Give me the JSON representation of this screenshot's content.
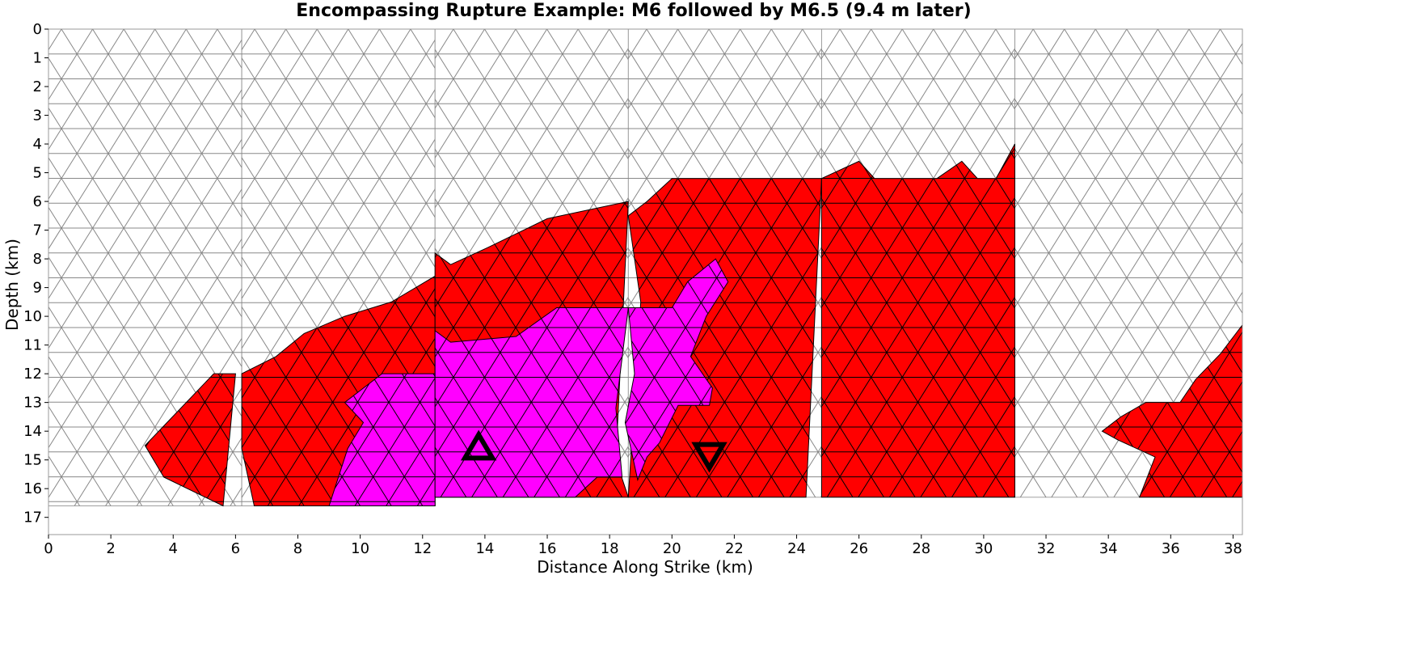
{
  "chart_data": {
    "type": "heatmap",
    "title": "Encompassing Rupture Example: M6 followed by M6.5 (9.4 m later)",
    "xlabel": "Distance Along Strike (km)",
    "ylabel": "Depth (km)",
    "xlim": [
      0,
      38.3
    ],
    "ylim": [
      0,
      17.6
    ],
    "y_inverted": true,
    "x_ticks": [
      "0",
      "2",
      "4",
      "6",
      "8",
      "10",
      "12",
      "14",
      "16",
      "18",
      "20",
      "22",
      "24",
      "26",
      "28",
      "30",
      "32",
      "34",
      "36",
      "38"
    ],
    "y_ticks": [
      "0",
      "1",
      "2",
      "3",
      "4",
      "5",
      "6",
      "7",
      "8",
      "9",
      "10",
      "11",
      "12",
      "13",
      "14",
      "15",
      "16",
      "17"
    ],
    "grid": false,
    "colors": {
      "unruptured": "#ffffff",
      "unruptured_edge": "#888888",
      "m6_5_rupture": "#ff0000",
      "m6_rupture": "#ff00ff",
      "element_edge": "#000000",
      "hypocenter_marker": "#000000"
    },
    "element_size_km": 1.0,
    "sections": [
      {
        "x": [
          0,
          6.2
        ],
        "bottom": 16.6
      },
      {
        "x": [
          6.2,
          12.4
        ],
        "bottom": 16.6
      },
      {
        "x": [
          12.4,
          18.6
        ],
        "bottom": 16.3
      },
      {
        "x": [
          18.6,
          24.8
        ],
        "bottom": 16.3
      },
      {
        "x": [
          24.8,
          31.0
        ],
        "bottom": 16.3
      },
      {
        "x": [
          31.0,
          38.3
        ],
        "bottom": 16.3
      }
    ],
    "m6_5_rupture_regions": [
      [
        [
          3.1,
          14.5
        ],
        [
          5.3,
          12.0
        ],
        [
          6.0,
          12.0
        ],
        [
          5.6,
          16.6
        ],
        [
          3.7,
          15.6
        ]
      ],
      [
        [
          6.2,
          12.0
        ],
        [
          7.3,
          11.4
        ],
        [
          8.2,
          10.6
        ],
        [
          9.5,
          10.0
        ],
        [
          11.0,
          9.5
        ],
        [
          12.4,
          8.6
        ],
        [
          12.4,
          16.6
        ],
        [
          6.6,
          16.6
        ],
        [
          6.2,
          14.6
        ]
      ],
      [
        [
          12.4,
          7.8
        ],
        [
          12.4,
          16.3
        ],
        [
          18.6,
          16.3
        ],
        [
          18.2,
          15.0
        ],
        [
          18.6,
          6.0
        ],
        [
          16.0,
          6.6
        ],
        [
          14.1,
          7.6
        ],
        [
          12.9,
          8.2
        ]
      ],
      [
        [
          18.6,
          6.5
        ],
        [
          19.2,
          6.0
        ],
        [
          20.0,
          5.2
        ],
        [
          24.8,
          5.2
        ],
        [
          24.3,
          16.3
        ],
        [
          18.6,
          16.3
        ],
        [
          19.0,
          9.5
        ]
      ],
      [
        [
          24.8,
          5.2
        ],
        [
          26.0,
          4.6
        ],
        [
          26.5,
          5.2
        ],
        [
          28.5,
          5.2
        ],
        [
          29.3,
          4.6
        ],
        [
          29.8,
          5.2
        ],
        [
          30.4,
          5.2
        ],
        [
          31.0,
          4.0
        ],
        [
          31.0,
          16.3
        ],
        [
          24.8,
          16.3
        ]
      ],
      [
        [
          33.8,
          14.0
        ],
        [
          34.4,
          13.5
        ],
        [
          35.2,
          13.0
        ],
        [
          36.3,
          13.0
        ],
        [
          36.8,
          12.2
        ],
        [
          37.6,
          11.3
        ],
        [
          38.3,
          10.3
        ],
        [
          38.3,
          16.3
        ],
        [
          35.0,
          16.3
        ],
        [
          35.5,
          14.9
        ],
        [
          34.3,
          14.3
        ]
      ]
    ],
    "m6_rupture_regions": [
      [
        [
          9.5,
          13.0
        ],
        [
          10.7,
          12.0
        ],
        [
          12.4,
          12.0
        ],
        [
          12.4,
          16.6
        ],
        [
          9.0,
          16.6
        ],
        [
          9.6,
          14.6
        ],
        [
          10.1,
          13.7
        ]
      ],
      [
        [
          12.4,
          10.5
        ],
        [
          12.4,
          16.3
        ],
        [
          16.9,
          16.3
        ],
        [
          17.6,
          15.6
        ],
        [
          18.4,
          15.6
        ],
        [
          18.2,
          13.2
        ],
        [
          18.6,
          9.7
        ],
        [
          16.3,
          9.7
        ],
        [
          15.0,
          10.7
        ],
        [
          12.9,
          10.9
        ]
      ],
      [
        [
          18.6,
          9.7
        ],
        [
          20.0,
          9.7
        ],
        [
          20.5,
          8.8
        ],
        [
          21.4,
          8.0
        ],
        [
          21.8,
          8.8
        ],
        [
          21.1,
          10.0
        ],
        [
          20.6,
          11.4
        ],
        [
          21.3,
          12.5
        ],
        [
          21.2,
          13.1
        ],
        [
          20.2,
          13.1
        ],
        [
          19.6,
          14.4
        ],
        [
          19.2,
          14.9
        ],
        [
          18.9,
          15.7
        ],
        [
          18.5,
          13.7
        ],
        [
          18.8,
          12.0
        ]
      ]
    ],
    "markers": [
      {
        "shape": "triangle-up",
        "x": 13.8,
        "y": 14.6
      },
      {
        "shape": "triangle-down",
        "x": 21.2,
        "y": 14.8
      }
    ]
  }
}
